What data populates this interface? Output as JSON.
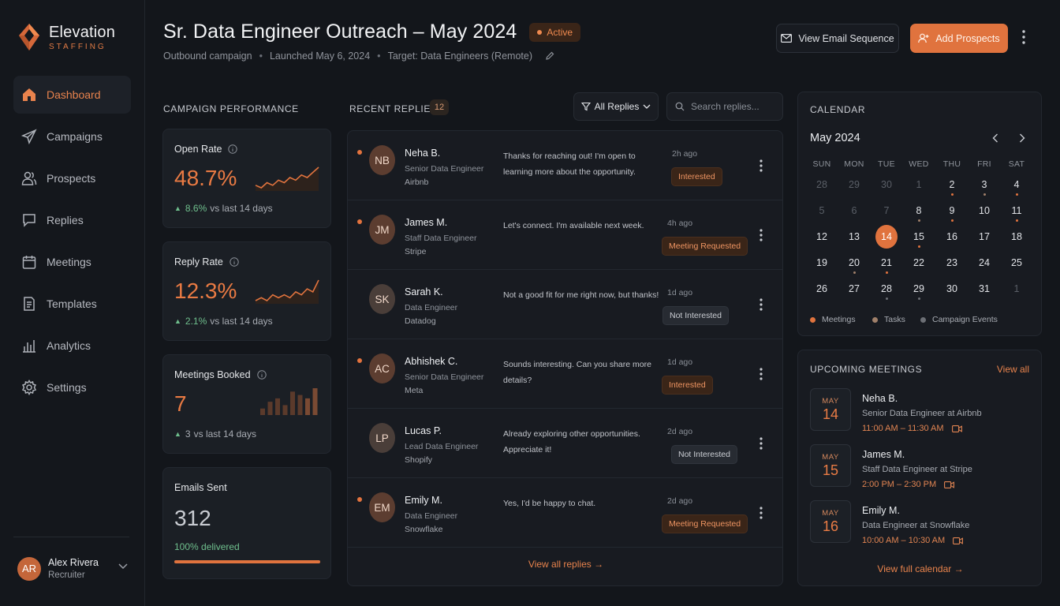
{
  "brand": {
    "name": "Elevation",
    "sub": "STAFFING",
    "logo_icon": "diamond-logo-icon",
    "accent": "#e0733e"
  },
  "sidebar": {
    "items": [
      {
        "label": "Dashboard",
        "icon": "home-icon",
        "active": true
      },
      {
        "label": "Campaigns",
        "icon": "send-icon",
        "active": false
      },
      {
        "label": "Prospects",
        "icon": "users-icon",
        "active": false
      },
      {
        "label": "Replies",
        "icon": "chat-icon",
        "active": false
      },
      {
        "label": "Meetings",
        "icon": "calendar-icon",
        "active": false
      },
      {
        "label": "Templates",
        "icon": "document-icon",
        "active": false
      },
      {
        "label": "Analytics",
        "icon": "bar-chart-icon",
        "active": false
      },
      {
        "label": "Settings",
        "icon": "gear-icon",
        "active": false
      }
    ],
    "user": {
      "initials": "AR",
      "name": "Alex Rivera",
      "role": "Recruiter"
    }
  },
  "header": {
    "title": "Sr. Data Engineer Outreach – May 2024",
    "status": "Active",
    "meta": [
      "Outbound campaign",
      "Launched May 6, 2024",
      "Target: Data Engineers (Remote)"
    ],
    "view_sequence_label": "View Email Sequence",
    "add_prospects_label": "Add Prospects"
  },
  "performance": {
    "title": "CAMPAIGN PERFORMANCE",
    "cards": [
      {
        "label": "Open Rate",
        "value": "48.7%",
        "delta_value": "8.6%",
        "delta_text": "vs last 14 days",
        "spark": [
          3,
          2,
          4,
          3,
          5,
          4,
          6,
          5,
          7,
          6,
          8,
          10
        ]
      },
      {
        "label": "Reply Rate",
        "value": "12.3%",
        "delta_value": "2.1%",
        "delta_text": "vs last 14 days",
        "spark": [
          2,
          3,
          2,
          4,
          3,
          4,
          3,
          5,
          4,
          6,
          5,
          9
        ]
      },
      {
        "label": "Meetings Booked",
        "value": "7",
        "delta_value": "3",
        "delta_text": "vs last 14 days",
        "bars": [
          1,
          3,
          4,
          2,
          6,
          5,
          4,
          7
        ]
      },
      {
        "label": "Emails Sent",
        "value": "312",
        "delivered_text": "100% delivered",
        "delivered_fraction": 1.0
      }
    ]
  },
  "replies": {
    "title": "RECENT REPLIES",
    "count": "12",
    "filter_label": "All Replies",
    "search_placeholder": "Search replies...",
    "items": [
      {
        "initials": "NB",
        "name": "Neha B.",
        "title": "Senior Data Engineer",
        "company": "Airbnb",
        "message": "Thanks for reaching out! I'm open to learning more about the opportunity.",
        "time": "2h ago",
        "status": "Interested",
        "tone": "orange",
        "unread": true
      },
      {
        "initials": "JM",
        "name": "James M.",
        "title": "Staff Data Engineer",
        "company": "Stripe",
        "message": "Let's connect. I'm available next week.",
        "time": "4h ago",
        "status": "Meeting Requested",
        "tone": "orange",
        "unread": true
      },
      {
        "initials": "SK",
        "name": "Sarah K.",
        "title": "Data Engineer",
        "company": "Datadog",
        "message": "Not a good fit for me right now, but thanks!",
        "time": "1d ago",
        "status": "Not Interested",
        "tone": "gray",
        "unread": false
      },
      {
        "initials": "AC",
        "name": "Abhishek C.",
        "title": "Senior Data Engineer",
        "company": "Meta",
        "message": "Sounds interesting. Can you share more details?",
        "time": "1d ago",
        "status": "Interested",
        "tone": "orange",
        "unread": true
      },
      {
        "initials": "LP",
        "name": "Lucas P.",
        "title": "Lead Data Engineer",
        "company": "Shopify",
        "message": "Already exploring other opportunities. Appreciate it!",
        "time": "2d ago",
        "status": "Not Interested",
        "tone": "gray",
        "unread": false
      },
      {
        "initials": "EM",
        "name": "Emily M.",
        "title": "Data Engineer",
        "company": "Snowflake",
        "message": "Yes, I'd be happy to chat.",
        "time": "2d ago",
        "status": "Meeting Requested",
        "tone": "orange",
        "unread": true
      }
    ],
    "view_all_label": "View all replies →"
  },
  "calendar": {
    "title": "CALENDAR",
    "month": "May 2024",
    "dow": [
      "SUN",
      "MON",
      "TUE",
      "WED",
      "THU",
      "FRI",
      "SAT"
    ],
    "weeks": [
      [
        "28",
        "29",
        "30",
        "1",
        "2",
        "3",
        "4"
      ],
      [
        "5",
        "6",
        "7",
        "8",
        "9",
        "10",
        "11"
      ],
      [
        "12",
        "13",
        "14",
        "15",
        "16",
        "17",
        "18"
      ],
      [
        "19",
        "20",
        "21",
        "22",
        "23",
        "24",
        "25"
      ],
      [
        "26",
        "27",
        "28",
        "29",
        "30",
        "31",
        "1"
      ]
    ],
    "muted": [
      [
        0,
        0
      ],
      [
        0,
        1
      ],
      [
        0,
        2
      ],
      [
        0,
        3
      ],
      [
        1,
        0
      ],
      [
        1,
        1
      ],
      [
        1,
        2
      ],
      [
        4,
        6
      ]
    ],
    "today": [
      2,
      2
    ],
    "dots": [
      {
        "w": 0,
        "d": 4,
        "kind": "meeting"
      },
      {
        "w": 0,
        "d": 6,
        "kind": "meeting"
      },
      {
        "w": 0,
        "d": 5,
        "kind": "task"
      },
      {
        "w": 1,
        "d": 3,
        "kind": "task"
      },
      {
        "w": 1,
        "d": 4,
        "kind": "meeting"
      },
      {
        "w": 1,
        "d": 6,
        "kind": "meeting"
      },
      {
        "w": 2,
        "d": 3,
        "kind": "meeting"
      },
      {
        "w": 3,
        "d": 2,
        "kind": "meeting"
      },
      {
        "w": 3,
        "d": 1,
        "kind": "task"
      },
      {
        "w": 4,
        "d": 2,
        "kind": "event"
      },
      {
        "w": 4,
        "d": 3,
        "kind": "event"
      }
    ],
    "legend": [
      {
        "label": "Meetings",
        "color": "#e0733e"
      },
      {
        "label": "Tasks",
        "color": "#a0806a"
      },
      {
        "label": "Campaign Events",
        "color": "#6c6f75"
      }
    ]
  },
  "meetings": {
    "title": "UPCOMING MEETINGS",
    "view_all": "View all",
    "items": [
      {
        "month": "MAY",
        "day": "14",
        "name": "Neha B.",
        "role": "Senior Data Engineer at Airbnb",
        "time": "11:00 AM – 11:30 AM"
      },
      {
        "month": "MAY",
        "day": "15",
        "name": "James M.",
        "role": "Staff Data Engineer at Stripe",
        "time": "2:00 PM – 2:30 PM"
      },
      {
        "month": "MAY",
        "day": "16",
        "name": "Emily M.",
        "role": "Data Engineer at Snowflake",
        "time": "10:00 AM – 10:30 AM"
      }
    ],
    "view_calendar": "View full calendar →"
  }
}
